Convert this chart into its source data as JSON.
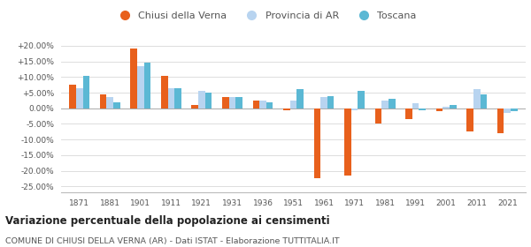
{
  "years": [
    1871,
    1881,
    1901,
    1911,
    1921,
    1931,
    1936,
    1951,
    1961,
    1971,
    1981,
    1991,
    2001,
    2011,
    2021
  ],
  "chiusi": [
    7.5,
    4.5,
    19.0,
    10.5,
    1.0,
    3.5,
    2.5,
    -0.5,
    -22.5,
    -21.5,
    -5.0,
    -3.5,
    -1.0,
    -7.5,
    -8.0
  ],
  "provincia": [
    6.5,
    3.5,
    13.5,
    6.5,
    5.5,
    3.5,
    2.5,
    2.5,
    3.5,
    -0.5,
    2.5,
    1.5,
    0.5,
    6.0,
    -1.5
  ],
  "toscana": [
    10.5,
    2.0,
    14.5,
    6.5,
    5.0,
    3.5,
    2.0,
    6.0,
    4.0,
    5.5,
    3.0,
    -0.5,
    1.0,
    4.5,
    -1.0
  ],
  "chiusi_color": "#e8601c",
  "provincia_color": "#b8d4f0",
  "toscana_color": "#5bb8d4",
  "title1": "Variazione percentuale della popolazione ai censimenti",
  "title2": "COMUNE DI CHIUSI DELLA VERNA (AR) - Dati ISTAT - Elaborazione TUTTITALIA.IT",
  "ylim": [
    -27,
    22
  ],
  "yticks": [
    -25,
    -20,
    -15,
    -10,
    -5,
    0,
    5,
    10,
    15,
    20
  ],
  "ytick_labels": [
    "-25.00%",
    "-20.00%",
    "-15.00%",
    "-10.00%",
    "-5.00%",
    "0.00%",
    "+5.00%",
    "+10.00%",
    "+15.00%",
    "+20.00%"
  ],
  "legend_labels": [
    "Chiusi della Verna",
    "Provincia di AR",
    "Toscana"
  ],
  "bg_color": "#ffffff",
  "grid_color": "#d8d8d8"
}
